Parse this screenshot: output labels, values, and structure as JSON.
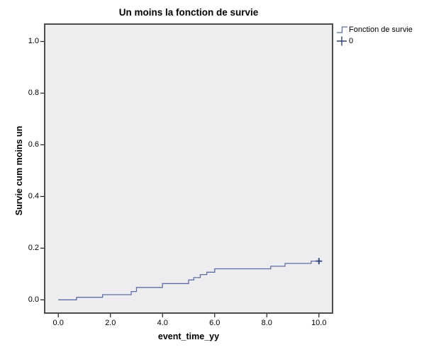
{
  "figure": {
    "title": "Un moins la fonction de survie",
    "x_axis_label": "event_time_yy",
    "y_axis_label": "Survie cum moins un"
  },
  "legend": {
    "entries": [
      {
        "symbol": "step-line-icon",
        "label": "Fonction de survie"
      },
      {
        "symbol": "plus-icon",
        "label": "0"
      }
    ]
  },
  "chart_data": {
    "type": "line",
    "subtype": "step-survival",
    "title": "Un moins la fonction de survie",
    "xlabel": "event_time_yy",
    "ylabel": "Survie cum moins un",
    "xlim": [
      -0.55,
      10.55
    ],
    "ylim": [
      -0.054,
      1.07
    ],
    "grid": false,
    "legend_position": "top-right-outside",
    "x_ticks": [
      0,
      2,
      4,
      6,
      8,
      10
    ],
    "x_tick_labels": [
      "0.0",
      "2.0",
      "4.0",
      "6.0",
      "8.0",
      "10.0"
    ],
    "y_ticks": [
      0.0,
      0.2,
      0.4,
      0.6,
      0.8,
      1.0
    ],
    "y_tick_labels": [
      "0.0",
      "0.2",
      "0.4",
      "0.6",
      "0.8",
      "1.0"
    ],
    "series": [
      {
        "name": "Fonction de survie",
        "style": "step",
        "points": [
          [
            0.0,
            0.0
          ],
          [
            0.7,
            0.01
          ],
          [
            1.7,
            0.02
          ],
          [
            2.8,
            0.032
          ],
          [
            3.0,
            0.048
          ],
          [
            4.0,
            0.063
          ],
          [
            5.0,
            0.077
          ],
          [
            5.2,
            0.086
          ],
          [
            5.45,
            0.098
          ],
          [
            5.7,
            0.107
          ],
          [
            6.0,
            0.12
          ],
          [
            8.15,
            0.13
          ],
          [
            8.7,
            0.141
          ],
          [
            9.7,
            0.15
          ]
        ],
        "end_x": 10.0
      }
    ],
    "censored": [
      {
        "x": 10.0,
        "y": 0.15,
        "group": "0"
      }
    ],
    "colors": {
      "line": "#5e6ea3",
      "censor": "#2e3f74",
      "plot_bg": "#ededef",
      "plot_border": "#4d4d4d",
      "tick": "#1a1a1a"
    }
  }
}
